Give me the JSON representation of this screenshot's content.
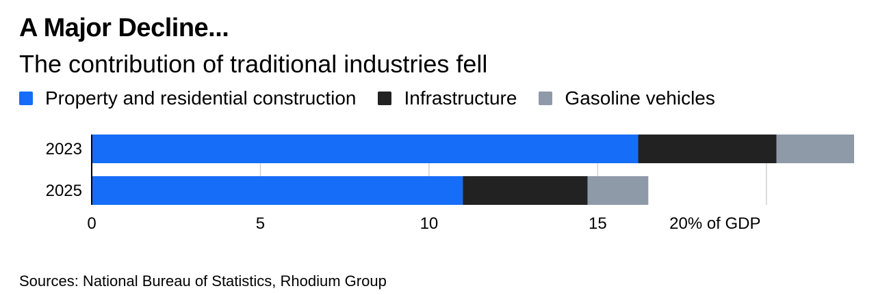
{
  "title": "A Major Decline...",
  "subtitle": "The contribution of traditional industries fell",
  "source": "Sources: National Bureau of Statistics, Rhodium Group",
  "colors": {
    "property": "#166df7",
    "infrastructure": "#222222",
    "gasoline": "#8f9aa8",
    "grid": "#d0d0d0",
    "axis": "#000000"
  },
  "chart_data": {
    "type": "bar",
    "orientation": "horizontal",
    "stacked": true,
    "categories": [
      "2023",
      "2025"
    ],
    "series": [
      {
        "name": "Property and residential construction",
        "color_key": "property",
        "values": [
          16.2,
          11.0
        ]
      },
      {
        "name": "Infrastructure",
        "color_key": "infrastructure",
        "values": [
          4.1,
          3.7
        ]
      },
      {
        "name": "Gasoline vehicles",
        "color_key": "gasoline",
        "values": [
          2.3,
          1.8
        ]
      }
    ],
    "xlim": [
      0,
      22.6
    ],
    "xticks": [
      0,
      5,
      10,
      15,
      20
    ],
    "xtick_labels": [
      "0",
      "5",
      "10",
      "15",
      "20% of GDP"
    ],
    "grid": true,
    "legend_position": "top-left"
  }
}
